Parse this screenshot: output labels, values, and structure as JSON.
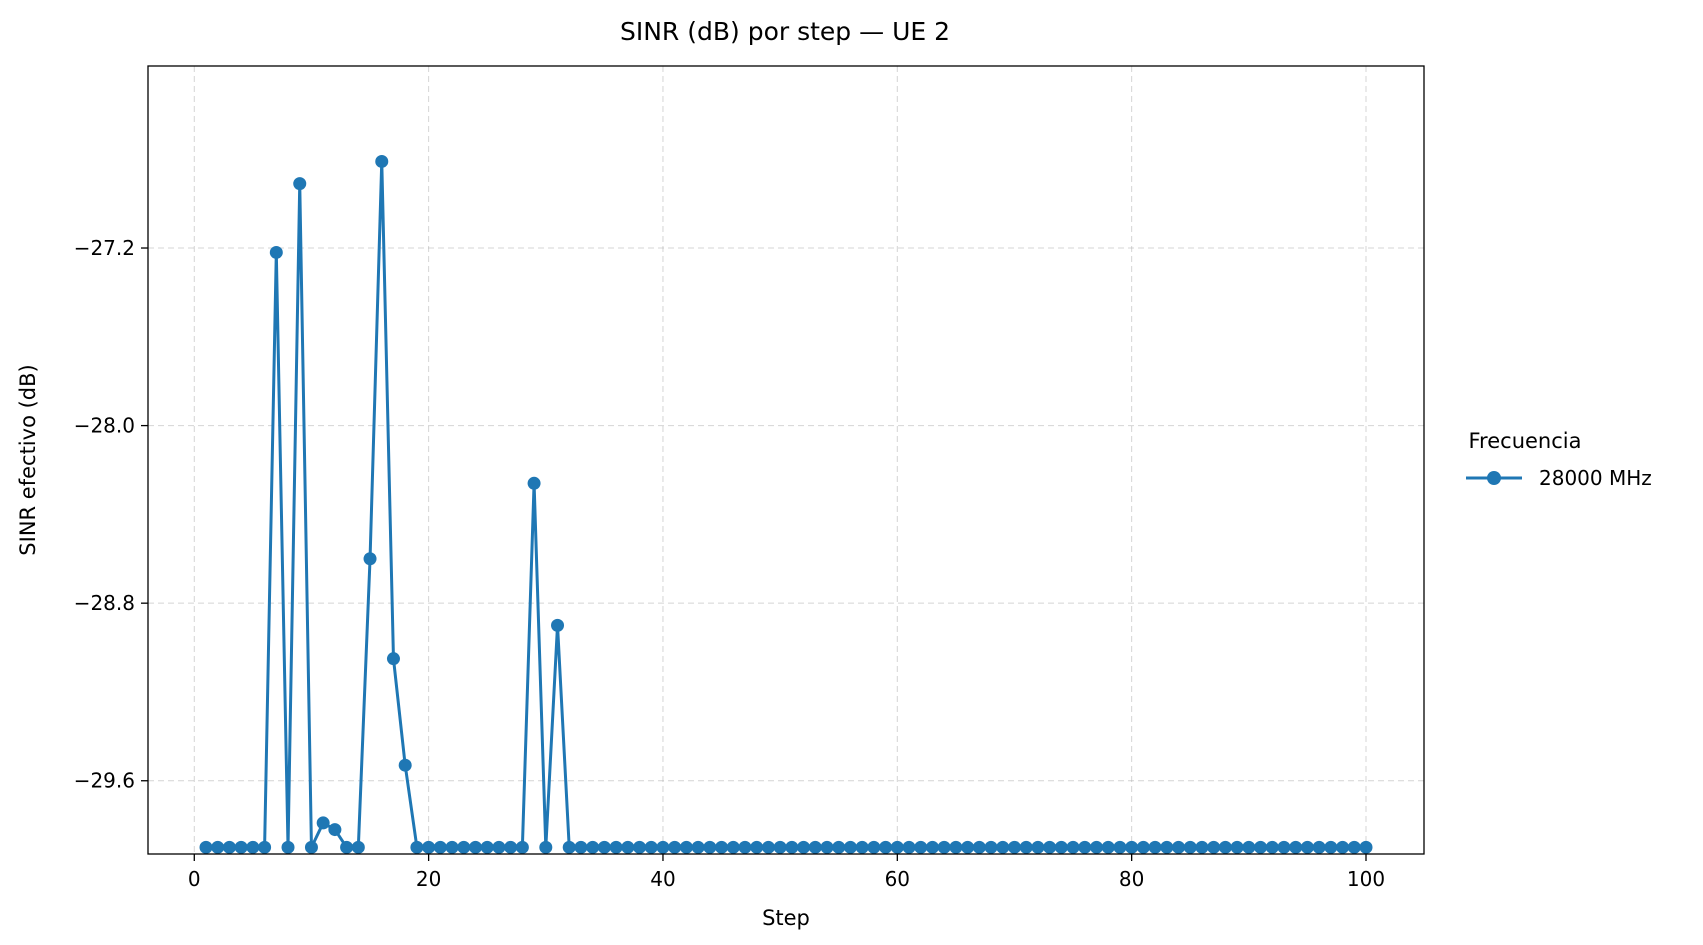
{
  "chart_data": {
    "type": "line",
    "title": "SINR (dB) por step — UE 2",
    "xlabel": "Step",
    "ylabel": "SINR efectivo (dB)",
    "xlim": [
      -3.95,
      104.95
    ],
    "ylim": [
      -29.93,
      -26.38
    ],
    "xticks": [
      0,
      20,
      40,
      60,
      80,
      100
    ],
    "xtick_labels": [
      "0",
      "20",
      "40",
      "60",
      "80",
      "100"
    ],
    "yticks": [
      -27.2,
      -28.0,
      -28.8,
      -29.6
    ],
    "ytick_labels": [
      "−27.2",
      "−28.0",
      "−28.8",
      "−29.6"
    ],
    "grid": true,
    "legend": {
      "title": "Frecuencia",
      "placement": "outside-right",
      "entries": [
        "28000 MHz"
      ]
    },
    "series": [
      {
        "name": "28000 MHz",
        "color": "#1f77b4",
        "marker": "circle",
        "x": [
          1,
          2,
          3,
          4,
          5,
          6,
          7,
          8,
          9,
          10,
          11,
          12,
          13,
          14,
          15,
          16,
          17,
          18,
          19,
          20,
          21,
          22,
          23,
          24,
          25,
          26,
          27,
          28,
          29,
          30,
          31,
          32,
          33,
          34,
          35,
          36,
          37,
          38,
          39,
          40,
          41,
          42,
          43,
          44,
          45,
          46,
          47,
          48,
          49,
          50,
          51,
          52,
          53,
          54,
          55,
          56,
          57,
          58,
          59,
          60,
          61,
          62,
          63,
          64,
          65,
          66,
          67,
          68,
          69,
          70,
          71,
          72,
          73,
          74,
          75,
          76,
          77,
          78,
          79,
          80,
          81,
          82,
          83,
          84,
          85,
          86,
          87,
          88,
          89,
          90,
          91,
          92,
          93,
          94,
          95,
          96,
          97,
          98,
          99,
          100
        ],
        "y": [
          -29.9,
          -29.9,
          -29.9,
          -29.9,
          -29.9,
          -29.9,
          -27.22,
          -29.9,
          -26.91,
          -29.9,
          -29.79,
          -29.82,
          -29.9,
          -29.9,
          -28.6,
          -26.81,
          -29.05,
          -29.53,
          -29.9,
          -29.9,
          -29.9,
          -29.9,
          -29.9,
          -29.9,
          -29.9,
          -29.9,
          -29.9,
          -29.9,
          -28.26,
          -29.9,
          -28.9,
          -29.9,
          -29.9,
          -29.9,
          -29.9,
          -29.9,
          -29.9,
          -29.9,
          -29.9,
          -29.9,
          -29.9,
          -29.9,
          -29.9,
          -29.9,
          -29.9,
          -29.9,
          -29.9,
          -29.9,
          -29.9,
          -29.9,
          -29.9,
          -29.9,
          -29.9,
          -29.9,
          -29.9,
          -29.9,
          -29.9,
          -29.9,
          -29.9,
          -29.9,
          -29.9,
          -29.9,
          -29.9,
          -29.9,
          -29.9,
          -29.9,
          -29.9,
          -29.9,
          -29.9,
          -29.9,
          -29.9,
          -29.9,
          -29.9,
          -29.9,
          -29.9,
          -29.9,
          -29.9,
          -29.9,
          -29.9,
          -29.9,
          -29.9,
          -29.9,
          -29.9,
          -29.9,
          -29.9,
          -29.9,
          -29.9,
          -29.9,
          -29.9,
          -29.9,
          -29.9,
          -29.9,
          -29.9,
          -29.9,
          -29.9,
          -29.9,
          -29.9,
          -29.9,
          -29.9,
          -29.9
        ]
      }
    ]
  }
}
